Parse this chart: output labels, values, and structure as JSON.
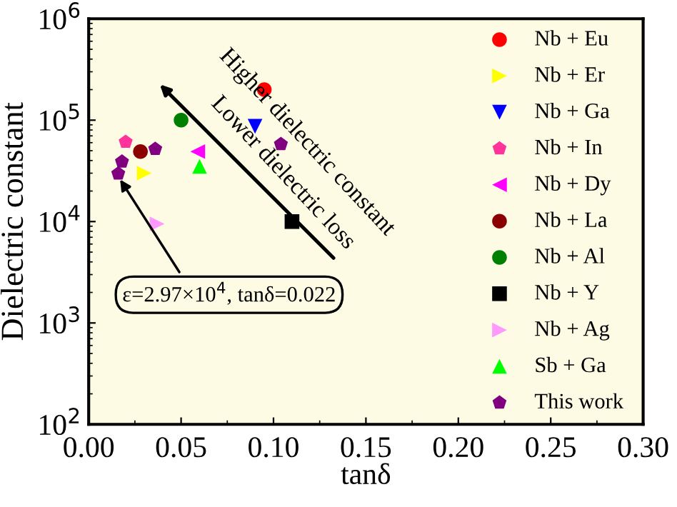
{
  "chart_data": {
    "type": "scatter",
    "xlabel": "tanδ",
    "ylabel": "Dielectric constant",
    "log": "y",
    "xlim": [
      0,
      0.3
    ],
    "xticks": [
      {
        "value": 0,
        "label": "0.00"
      },
      {
        "value": 0.05,
        "label": "0.05"
      },
      {
        "value": 0.1,
        "label": "0.10"
      },
      {
        "value": 0.15,
        "label": "0.15"
      },
      {
        "value": 0.2,
        "label": "0.20"
      },
      {
        "value": 0.25,
        "label": "0.25"
      },
      {
        "value": 0.3,
        "label": "0.30"
      }
    ],
    "ylim": [
      100,
      1000000
    ],
    "yticks": [
      {
        "value": 100,
        "label": "10$^{2}$"
      },
      {
        "value": 1000,
        "label": "10$^{3}$"
      },
      {
        "value": 10000,
        "label": "10$^{4}$"
      },
      {
        "value": 100000,
        "label": "10$^{5}$"
      },
      {
        "value": 1000000,
        "label": "10$^{6}$"
      }
    ],
    "grid": false,
    "legend": "right",
    "series": [
      {
        "name": "Nb + Eu",
        "color": "#ff0000",
        "marker": "circle",
        "x": [
          0.095
        ],
        "values": [
          200000
        ]
      },
      {
        "name": "Nb + Er",
        "color": "#ffff00",
        "marker": "triangle_right",
        "x": [
          0.03
        ],
        "values": [
          30000
        ]
      },
      {
        "name": "Nb + Ga",
        "color": "#0000ff",
        "marker": "triangle_down",
        "x": [
          0.09
        ],
        "values": [
          87000
        ]
      },
      {
        "name": "Nb + In",
        "color": "#ff3399",
        "x": [
          0.02
        ],
        "values": [
          61000
        ]
      },
      {
        "name": "Nb + Dy",
        "color": "#ff00ff",
        "marker": "triangle_left",
        "x": [
          0.059
        ],
        "values": [
          49000
        ]
      },
      {
        "name": "Nb + La",
        "color": "#8b0000",
        "marker": "circle",
        "x": [
          0.028
        ],
        "values": [
          49000
        ]
      },
      {
        "name": "Nb + Al",
        "color": "#008000",
        "marker": "circle",
        "x": [
          0.05
        ],
        "values": [
          100000
        ]
      },
      {
        "name": "Nb + Y",
        "color": "#000000",
        "marker": "square",
        "x": [
          0.11
        ],
        "values": [
          10000
        ]
      },
      {
        "name": "Nb + Ag",
        "color": "#ff99ff",
        "marker": "triangle_right",
        "x": [
          0.037
        ],
        "values": [
          9500
        ]
      },
      {
        "name": "Sb + Ga",
        "color": "#00ff00",
        "marker": "triangle",
        "x": [
          0.06
        ],
        "values": [
          35000
        ]
      },
      {
        "name": "This work",
        "color": "#800080",
        "x": [
          0.016,
          0.018,
          0.036,
          0.104
        ],
        "values": [
          29700,
          39000,
          52000,
          58000
        ]
      }
    ],
    "annotations": [
      {
        "text": "ε=2.97×10$^{4}$, tanδ=0.022",
        "x": 0.017,
        "y": 26000
      },
      "Higher dielectric constant",
      "Lower dielectric loss"
    ]
  }
}
